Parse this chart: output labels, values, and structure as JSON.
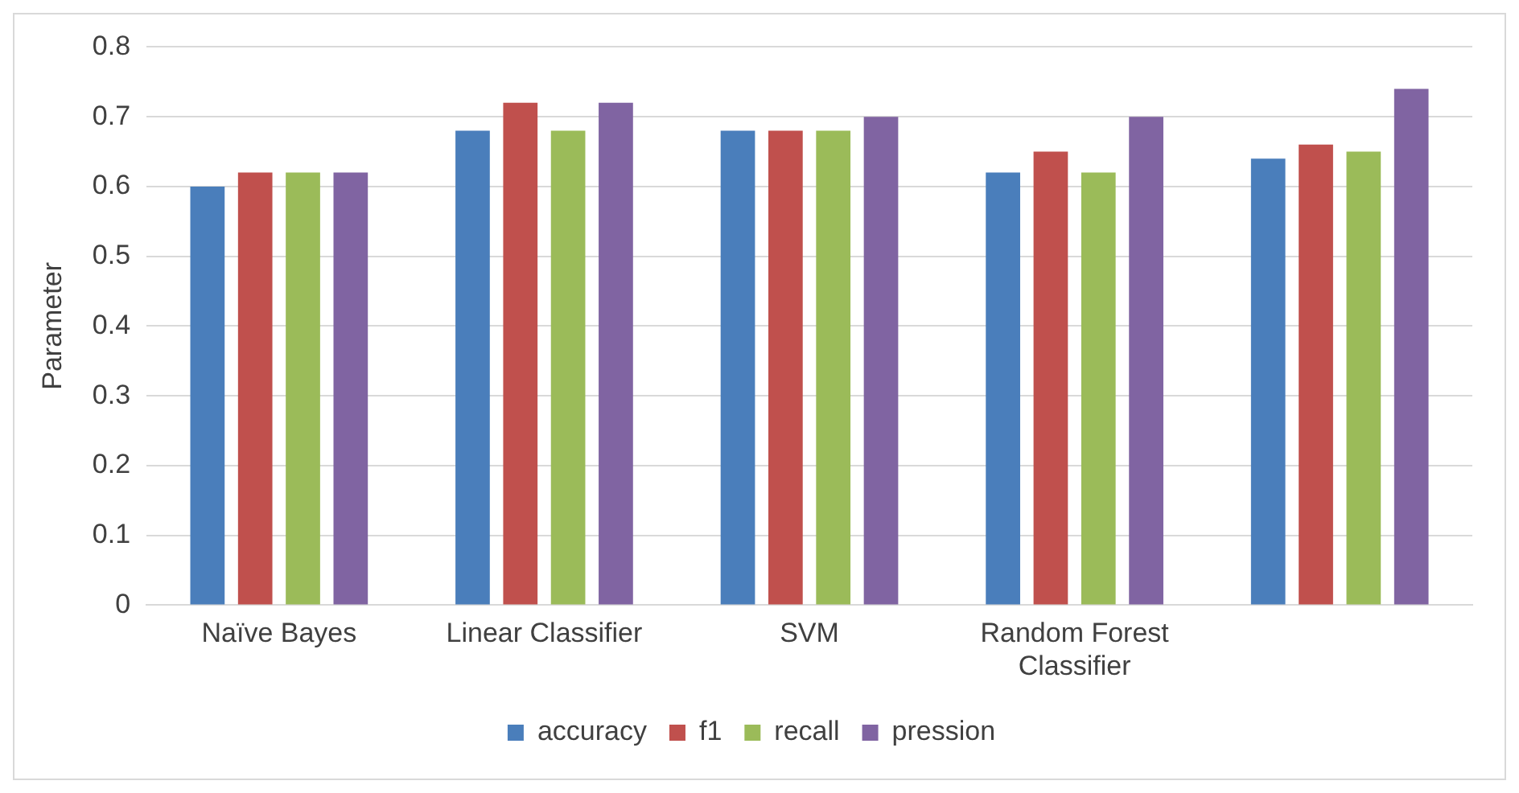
{
  "chart_data": {
    "type": "bar",
    "ylabel": "Parameter",
    "categories": [
      "Naïve Bayes",
      "Linear Classifier",
      "SVM",
      "Random Forest Classifier",
      null
    ],
    "series": [
      {
        "name": "accuracy",
        "color": "#4a7ebb",
        "values": [
          0.6,
          0.68,
          0.68,
          0.62,
          0.64
        ]
      },
      {
        "name": "f1",
        "color": "#c0504d",
        "values": [
          0.62,
          0.72,
          0.68,
          0.65,
          0.66
        ]
      },
      {
        "name": "recall",
        "color": "#9bbb59",
        "values": [
          0.62,
          0.68,
          0.68,
          0.62,
          0.65
        ]
      },
      {
        "name": "pression",
        "color": "#8064a2",
        "values": [
          0.62,
          0.72,
          0.7,
          0.7,
          0.74
        ]
      }
    ],
    "ylim": [
      0,
      0.8
    ],
    "yticks": [
      0,
      0.1,
      0.2,
      0.3,
      0.4,
      0.5,
      0.6,
      0.7,
      0.8
    ],
    "grid": "y",
    "legend": "bottom"
  }
}
